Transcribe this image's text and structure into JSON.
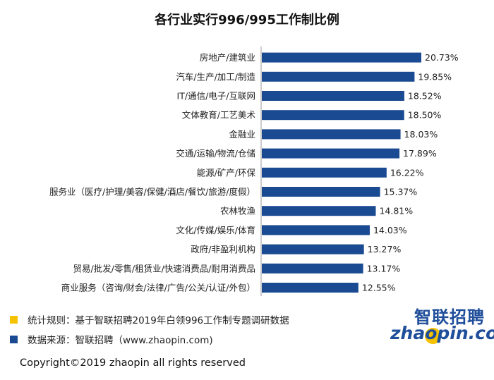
{
  "chart_data": {
    "type": "bar",
    "orientation": "horizontal",
    "title": "各行业实行996/995工作制比例",
    "categories": [
      "房地产/建筑业",
      "汽车/生产/加工/制造",
      "IT/通信/电子/互联网",
      "文体教育/工艺美术",
      "金融业",
      "交通/运输/物流/仓储",
      "能源/矿产/环保",
      "服务业（医疗/护理/美容/保健/酒店/餐饮/旅游/度假）",
      "农林牧渔",
      "文化/传媒/娱乐/体育",
      "政府/非盈利机构",
      "贸易/批发/零售/租赁业/快速消费品/耐用消费品",
      "商业服务（咨询/财会/法律/广告/公关/认证/外包）"
    ],
    "values": [
      20.73,
      19.85,
      18.52,
      18.5,
      18.03,
      17.89,
      16.22,
      15.37,
      14.81,
      14.03,
      13.27,
      13.17,
      12.55
    ],
    "value_labels": [
      "20.73%",
      "19.85%",
      "18.52%",
      "18.50%",
      "18.03%",
      "17.89%",
      "16.22%",
      "15.37%",
      "14.81%",
      "14.03%",
      "13.27%",
      "13.17%",
      "12.55%"
    ],
    "unit": "%",
    "xlim": [
      0,
      22
    ],
    "grid": false,
    "bar_color": "#1a4a91"
  },
  "legend": [
    {
      "text": "统计规则：基于智联招聘2019年白领996工作制专题调研数据",
      "color": "#f5c200"
    },
    {
      "text": "数据来源：智联招聘（www.zhaopin.com)",
      "color": "#1a4a91"
    }
  ],
  "copyright": "Copyright©2019 zhaopin all rights reserved",
  "logo": {
    "cn": "智联招聘",
    "en": "zhaopin.com",
    "colors": {
      "blue": "#1f4e9b",
      "yellow": "#f5c200"
    }
  }
}
